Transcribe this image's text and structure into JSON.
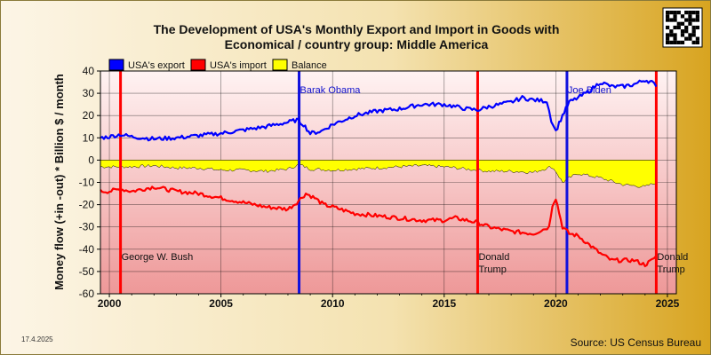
{
  "chart_data": {
    "type": "line",
    "title": "The Development of USA's Monthly Export and Import in Goods with",
    "subtitle": "Economical / country group: Middle America",
    "ylabel": "Money flow (+in -out) * Billion $ / month",
    "xlabel": "",
    "xlim": [
      1999.6,
      2025.4
    ],
    "ylim": [
      -60,
      40
    ],
    "yticks": [
      40,
      30,
      20,
      10,
      0,
      -10,
      -20,
      -30,
      -40,
      -50,
      -60
    ],
    "xticks": [
      2000,
      2005,
      2010,
      2015,
      2020,
      2025
    ],
    "grid": true,
    "legend_position": "top-left",
    "series": [
      {
        "name": "USA's export",
        "color": "#0000ff",
        "points": [
          [
            1999.6,
            10
          ],
          [
            2000,
            10.5
          ],
          [
            2000.5,
            11.5
          ],
          [
            2001,
            10.5
          ],
          [
            2002,
            9.5
          ],
          [
            2003,
            10
          ],
          [
            2004,
            11
          ],
          [
            2005,
            12
          ],
          [
            2006,
            13.5
          ],
          [
            2007,
            15
          ],
          [
            2008,
            17
          ],
          [
            2008.4,
            18
          ],
          [
            2008.7,
            16
          ],
          [
            2009,
            12
          ],
          [
            2009.5,
            13
          ],
          [
            2010,
            16
          ],
          [
            2011,
            20
          ],
          [
            2012,
            22
          ],
          [
            2013,
            23
          ],
          [
            2014,
            25
          ],
          [
            2015,
            25
          ],
          [
            2015.5,
            24
          ],
          [
            2016,
            23
          ],
          [
            2016.5,
            22.5
          ],
          [
            2017,
            24
          ],
          [
            2018,
            26
          ],
          [
            2018.5,
            28
          ],
          [
            2019,
            27
          ],
          [
            2019.6,
            26.5
          ],
          [
            2019.8,
            18
          ],
          [
            2020,
            13
          ],
          [
            2020.3,
            20
          ],
          [
            2020.6,
            26
          ],
          [
            2021,
            28
          ],
          [
            2021.5,
            31
          ],
          [
            2022,
            35
          ],
          [
            2022.5,
            33
          ],
          [
            2023,
            33
          ],
          [
            2023.5,
            34
          ],
          [
            2024,
            36
          ],
          [
            2024.3,
            35
          ],
          [
            2024.5,
            33
          ]
        ]
      },
      {
        "name": "USA's import",
        "color": "#ff0000",
        "points": [
          [
            1999.6,
            -14
          ],
          [
            2000,
            -14
          ],
          [
            2000.5,
            -13
          ],
          [
            2001,
            -14
          ],
          [
            2002,
            -12
          ],
          [
            2003,
            -14
          ],
          [
            2004,
            -15
          ],
          [
            2005,
            -17
          ],
          [
            2006,
            -19
          ],
          [
            2007,
            -21
          ],
          [
            2008,
            -22
          ],
          [
            2008.4,
            -19
          ],
          [
            2008.8,
            -15
          ],
          [
            2009.2,
            -17
          ],
          [
            2009.6,
            -20
          ],
          [
            2010,
            -21
          ],
          [
            2011,
            -24
          ],
          [
            2012,
            -25
          ],
          [
            2013,
            -26
          ],
          [
            2014,
            -27
          ],
          [
            2015,
            -27
          ],
          [
            2015.5,
            -26
          ],
          [
            2016,
            -27
          ],
          [
            2016.5,
            -28
          ],
          [
            2017,
            -30
          ],
          [
            2018,
            -32
          ],
          [
            2019,
            -33
          ],
          [
            2019.7,
            -30
          ],
          [
            2019.85,
            -20
          ],
          [
            2020,
            -17
          ],
          [
            2020.3,
            -30
          ],
          [
            2020.6,
            -33
          ],
          [
            2021,
            -34
          ],
          [
            2021.5,
            -38
          ],
          [
            2022,
            -42
          ],
          [
            2022.5,
            -45
          ],
          [
            2023,
            -45
          ],
          [
            2023.5,
            -45
          ],
          [
            2024,
            -47
          ],
          [
            2024.3,
            -45
          ],
          [
            2024.5,
            -43
          ]
        ]
      },
      {
        "name": "Balance",
        "color": "#ffff00",
        "type": "area",
        "points": [
          [
            1999.6,
            -3
          ],
          [
            2000,
            -3
          ],
          [
            2001,
            -3
          ],
          [
            2002,
            -2.5
          ],
          [
            2003,
            -3.5
          ],
          [
            2004,
            -3.5
          ],
          [
            2005,
            -4.5
          ],
          [
            2006,
            -4.5
          ],
          [
            2007,
            -5
          ],
          [
            2008,
            -4
          ],
          [
            2008.5,
            -2
          ],
          [
            2009,
            -4
          ],
          [
            2010,
            -4.5
          ],
          [
            2011,
            -4
          ],
          [
            2012,
            -3.5
          ],
          [
            2013,
            -3
          ],
          [
            2014,
            -2.5
          ],
          [
            2015,
            -3
          ],
          [
            2016,
            -4
          ],
          [
            2017,
            -5
          ],
          [
            2018,
            -5
          ],
          [
            2019,
            -5.5
          ],
          [
            2019.8,
            -3
          ],
          [
            2020,
            -5
          ],
          [
            2020.3,
            -10
          ],
          [
            2020.6,
            -8
          ],
          [
            2021,
            -6
          ],
          [
            2022,
            -8
          ],
          [
            2023,
            -11
          ],
          [
            2024,
            -12
          ],
          [
            2024.5,
            -10
          ]
        ]
      }
    ],
    "events": [
      {
        "x": 2000.5,
        "color": "#ff0000",
        "label": [
          "George W. Bush"
        ],
        "label_pos": "low"
      },
      {
        "x": 2008.5,
        "color": "#1111dd",
        "label": [
          "Barak Obama"
        ],
        "label_pos": "high"
      },
      {
        "x": 2016.5,
        "color": "#ff0000",
        "label": [
          "Donald",
          "Trump"
        ],
        "label_pos": "low"
      },
      {
        "x": 2020.5,
        "color": "#1111dd",
        "label": [
          "Joe Biden"
        ],
        "label_pos": "high"
      },
      {
        "x": 2024.5,
        "color": "#ff0000",
        "label": [
          "Donald",
          "Trump"
        ],
        "label_pos": "low"
      }
    ]
  },
  "footer": {
    "date": "17.4.2025",
    "source": "Source: US Census Bureau"
  }
}
